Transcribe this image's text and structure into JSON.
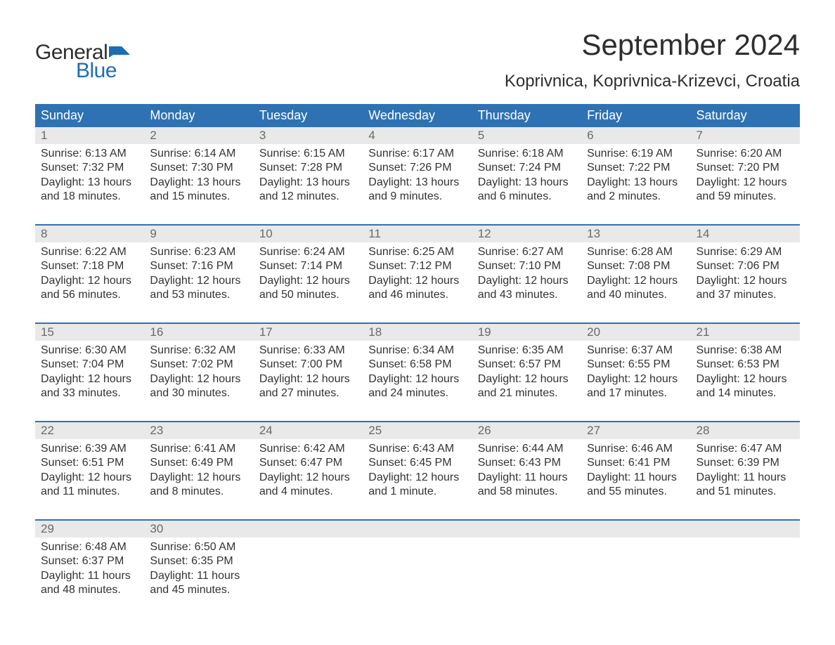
{
  "logo": {
    "word1": "General",
    "word2": "Blue",
    "flag_color": "#1e6db5",
    "text_dark": "#2e2e2e"
  },
  "title": "September 2024",
  "location": "Koprivnica, Koprivnica-Krizevci, Croatia",
  "colors": {
    "header_bg": "#2f72b3",
    "header_text": "#ffffff",
    "daynum_bg": "#e9e9e9",
    "daynum_text": "#6a6a6a",
    "body_text": "#333333",
    "week_border": "#2f72b3",
    "background": "#ffffff"
  },
  "typography": {
    "title_fontsize": 42,
    "location_fontsize": 24,
    "weekday_fontsize": 18,
    "daynum_fontsize": 17,
    "body_fontsize": 16,
    "logo_fontsize": 30
  },
  "weekdays": [
    "Sunday",
    "Monday",
    "Tuesday",
    "Wednesday",
    "Thursday",
    "Friday",
    "Saturday"
  ],
  "weeks": [
    [
      {
        "n": "1",
        "sr": "Sunrise: 6:13 AM",
        "ss": "Sunset: 7:32 PM",
        "d1": "Daylight: 13 hours",
        "d2": "and 18 minutes."
      },
      {
        "n": "2",
        "sr": "Sunrise: 6:14 AM",
        "ss": "Sunset: 7:30 PM",
        "d1": "Daylight: 13 hours",
        "d2": "and 15 minutes."
      },
      {
        "n": "3",
        "sr": "Sunrise: 6:15 AM",
        "ss": "Sunset: 7:28 PM",
        "d1": "Daylight: 13 hours",
        "d2": "and 12 minutes."
      },
      {
        "n": "4",
        "sr": "Sunrise: 6:17 AM",
        "ss": "Sunset: 7:26 PM",
        "d1": "Daylight: 13 hours",
        "d2": "and 9 minutes."
      },
      {
        "n": "5",
        "sr": "Sunrise: 6:18 AM",
        "ss": "Sunset: 7:24 PM",
        "d1": "Daylight: 13 hours",
        "d2": "and 6 minutes."
      },
      {
        "n": "6",
        "sr": "Sunrise: 6:19 AM",
        "ss": "Sunset: 7:22 PM",
        "d1": "Daylight: 13 hours",
        "d2": "and 2 minutes."
      },
      {
        "n": "7",
        "sr": "Sunrise: 6:20 AM",
        "ss": "Sunset: 7:20 PM",
        "d1": "Daylight: 12 hours",
        "d2": "and 59 minutes."
      }
    ],
    [
      {
        "n": "8",
        "sr": "Sunrise: 6:22 AM",
        "ss": "Sunset: 7:18 PM",
        "d1": "Daylight: 12 hours",
        "d2": "and 56 minutes."
      },
      {
        "n": "9",
        "sr": "Sunrise: 6:23 AM",
        "ss": "Sunset: 7:16 PM",
        "d1": "Daylight: 12 hours",
        "d2": "and 53 minutes."
      },
      {
        "n": "10",
        "sr": "Sunrise: 6:24 AM",
        "ss": "Sunset: 7:14 PM",
        "d1": "Daylight: 12 hours",
        "d2": "and 50 minutes."
      },
      {
        "n": "11",
        "sr": "Sunrise: 6:25 AM",
        "ss": "Sunset: 7:12 PM",
        "d1": "Daylight: 12 hours",
        "d2": "and 46 minutes."
      },
      {
        "n": "12",
        "sr": "Sunrise: 6:27 AM",
        "ss": "Sunset: 7:10 PM",
        "d1": "Daylight: 12 hours",
        "d2": "and 43 minutes."
      },
      {
        "n": "13",
        "sr": "Sunrise: 6:28 AM",
        "ss": "Sunset: 7:08 PM",
        "d1": "Daylight: 12 hours",
        "d2": "and 40 minutes."
      },
      {
        "n": "14",
        "sr": "Sunrise: 6:29 AM",
        "ss": "Sunset: 7:06 PM",
        "d1": "Daylight: 12 hours",
        "d2": "and 37 minutes."
      }
    ],
    [
      {
        "n": "15",
        "sr": "Sunrise: 6:30 AM",
        "ss": "Sunset: 7:04 PM",
        "d1": "Daylight: 12 hours",
        "d2": "and 33 minutes."
      },
      {
        "n": "16",
        "sr": "Sunrise: 6:32 AM",
        "ss": "Sunset: 7:02 PM",
        "d1": "Daylight: 12 hours",
        "d2": "and 30 minutes."
      },
      {
        "n": "17",
        "sr": "Sunrise: 6:33 AM",
        "ss": "Sunset: 7:00 PM",
        "d1": "Daylight: 12 hours",
        "d2": "and 27 minutes."
      },
      {
        "n": "18",
        "sr": "Sunrise: 6:34 AM",
        "ss": "Sunset: 6:58 PM",
        "d1": "Daylight: 12 hours",
        "d2": "and 24 minutes."
      },
      {
        "n": "19",
        "sr": "Sunrise: 6:35 AM",
        "ss": "Sunset: 6:57 PM",
        "d1": "Daylight: 12 hours",
        "d2": "and 21 minutes."
      },
      {
        "n": "20",
        "sr": "Sunrise: 6:37 AM",
        "ss": "Sunset: 6:55 PM",
        "d1": "Daylight: 12 hours",
        "d2": "and 17 minutes."
      },
      {
        "n": "21",
        "sr": "Sunrise: 6:38 AM",
        "ss": "Sunset: 6:53 PM",
        "d1": "Daylight: 12 hours",
        "d2": "and 14 minutes."
      }
    ],
    [
      {
        "n": "22",
        "sr": "Sunrise: 6:39 AM",
        "ss": "Sunset: 6:51 PM",
        "d1": "Daylight: 12 hours",
        "d2": "and 11 minutes."
      },
      {
        "n": "23",
        "sr": "Sunrise: 6:41 AM",
        "ss": "Sunset: 6:49 PM",
        "d1": "Daylight: 12 hours",
        "d2": "and 8 minutes."
      },
      {
        "n": "24",
        "sr": "Sunrise: 6:42 AM",
        "ss": "Sunset: 6:47 PM",
        "d1": "Daylight: 12 hours",
        "d2": "and 4 minutes."
      },
      {
        "n": "25",
        "sr": "Sunrise: 6:43 AM",
        "ss": "Sunset: 6:45 PM",
        "d1": "Daylight: 12 hours",
        "d2": "and 1 minute."
      },
      {
        "n": "26",
        "sr": "Sunrise: 6:44 AM",
        "ss": "Sunset: 6:43 PM",
        "d1": "Daylight: 11 hours",
        "d2": "and 58 minutes."
      },
      {
        "n": "27",
        "sr": "Sunrise: 6:46 AM",
        "ss": "Sunset: 6:41 PM",
        "d1": "Daylight: 11 hours",
        "d2": "and 55 minutes."
      },
      {
        "n": "28",
        "sr": "Sunrise: 6:47 AM",
        "ss": "Sunset: 6:39 PM",
        "d1": "Daylight: 11 hours",
        "d2": "and 51 minutes."
      }
    ],
    [
      {
        "n": "29",
        "sr": "Sunrise: 6:48 AM",
        "ss": "Sunset: 6:37 PM",
        "d1": "Daylight: 11 hours",
        "d2": "and 48 minutes."
      },
      {
        "n": "30",
        "sr": "Sunrise: 6:50 AM",
        "ss": "Sunset: 6:35 PM",
        "d1": "Daylight: 11 hours",
        "d2": "and 45 minutes."
      },
      null,
      null,
      null,
      null,
      null
    ]
  ]
}
